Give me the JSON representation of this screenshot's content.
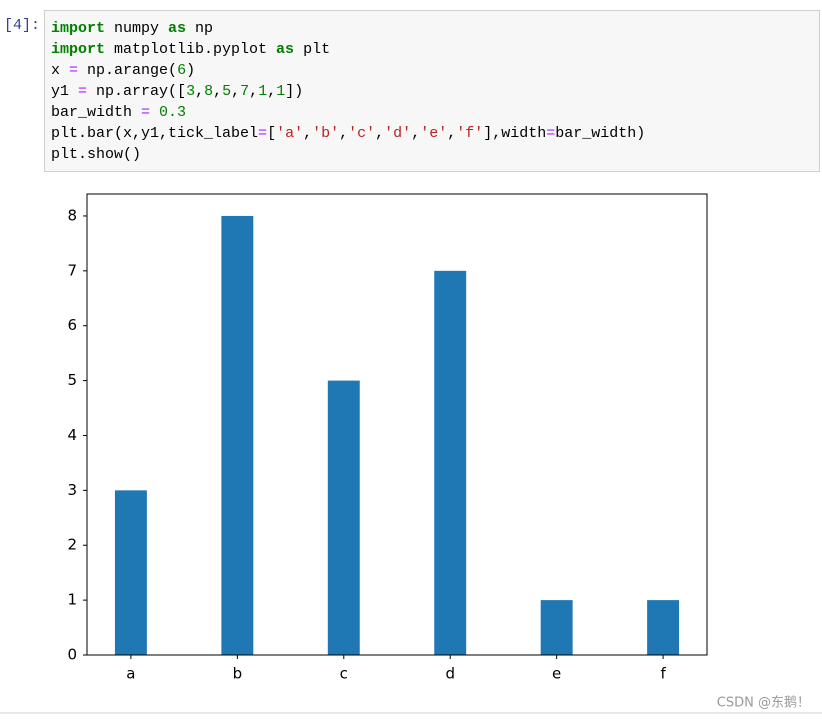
{
  "prompt": "[4]:",
  "code": {
    "lines": [
      [
        {
          "text": "import",
          "color": "#008000",
          "bold": true
        },
        " numpy ",
        {
          "text": "as",
          "color": "#008000",
          "bold": true
        },
        " np"
      ],
      [
        {
          "text": "import",
          "color": "#008000",
          "bold": true
        },
        " matplotlib.pyplot ",
        {
          "text": "as",
          "color": "#008000",
          "bold": true
        },
        " plt"
      ],
      [
        "x ",
        {
          "text": "=",
          "color": "#aa22ff"
        },
        " np.arange(",
        {
          "text": "6",
          "color": "#008000"
        },
        ")"
      ],
      [
        "y1 ",
        {
          "text": "=",
          "color": "#aa22ff"
        },
        " np.array([",
        {
          "text": "3",
          "color": "#008000"
        },
        ",",
        {
          "text": "8",
          "color": "#008000"
        },
        ",",
        {
          "text": "5",
          "color": "#008000"
        },
        ",",
        {
          "text": "7",
          "color": "#008000"
        },
        ",",
        {
          "text": "1",
          "color": "#008000"
        },
        ",",
        {
          "text": "1",
          "color": "#008000"
        },
        "])"
      ],
      [
        "bar_width ",
        {
          "text": "=",
          "color": "#aa22ff"
        },
        " ",
        {
          "text": "0.3",
          "color": "#008000"
        }
      ],
      [
        "plt.bar(x,y1,tick_label",
        {
          "text": "=",
          "color": "#aa22ff"
        },
        "[",
        {
          "text": "'a'",
          "color": "#ba2121"
        },
        ",",
        {
          "text": "'b'",
          "color": "#ba2121"
        },
        ",",
        {
          "text": "'c'",
          "color": "#ba2121"
        },
        ",",
        {
          "text": "'d'",
          "color": "#ba2121"
        },
        ",",
        {
          "text": "'e'",
          "color": "#ba2121"
        },
        ",",
        {
          "text": "'f'",
          "color": "#ba2121"
        },
        "],width",
        {
          "text": "=",
          "color": "#aa22ff"
        },
        "bar_width)"
      ],
      [
        "plt.show()"
      ]
    ]
  },
  "chart_data": {
    "type": "bar",
    "categories": [
      "a",
      "b",
      "c",
      "d",
      "e",
      "f"
    ],
    "values": [
      3,
      8,
      5,
      7,
      1,
      1
    ],
    "color": "#1f77b4",
    "bar_width": 0.3,
    "xlim": [
      -0.4125,
      5.4125
    ],
    "ylim": [
      0,
      8.4
    ],
    "yticks": [
      0,
      1,
      2,
      3,
      4,
      5,
      6,
      7,
      8
    ]
  },
  "watermark": "CSDN @东鹅！"
}
